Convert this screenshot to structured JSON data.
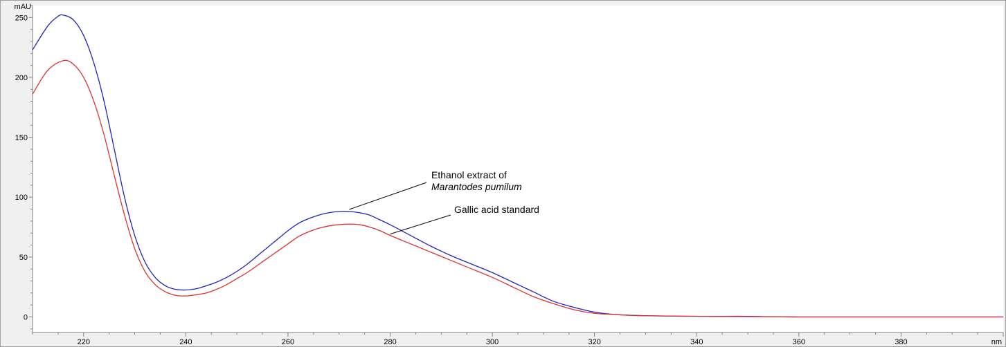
{
  "chart_data": {
    "type": "line",
    "title": "",
    "xlabel": "nm",
    "ylabel": "mAU",
    "xlim": [
      210,
      400
    ],
    "ylim": [
      -13,
      260
    ],
    "x_ticks": [
      220,
      240,
      260,
      280,
      300,
      320,
      340,
      360,
      380
    ],
    "y_ticks": [
      0,
      50,
      100,
      150,
      200,
      250
    ],
    "grid": false,
    "series": [
      {
        "name": "Ethanol extract of Marantodes pumilum",
        "color": "#2020c0",
        "x": [
          210,
          213,
          215,
          216,
          218,
          220,
          222,
          224,
          226,
          228,
          230,
          232,
          234,
          236,
          238,
          240,
          242,
          244,
          246,
          248,
          250,
          252,
          254,
          256,
          258,
          260,
          262,
          264,
          266,
          268,
          270,
          272,
          274,
          276,
          278,
          280,
          284,
          288,
          292,
          296,
          300,
          304,
          308,
          312,
          316,
          320,
          324,
          330,
          340,
          350,
          360,
          400
        ],
        "y": [
          223,
          243,
          251,
          252,
          248,
          235,
          212,
          180,
          140,
          100,
          68,
          46,
          33,
          26,
          23,
          22.5,
          23.5,
          26,
          29,
          33,
          38,
          44,
          51,
          58,
          65,
          72,
          78,
          82,
          85,
          87,
          88,
          88,
          87,
          85,
          81,
          77,
          68,
          59,
          51,
          44,
          37,
          29,
          21,
          13,
          8,
          4,
          2,
          1,
          0.5,
          0.5,
          0,
          0
        ]
      },
      {
        "name": "Gallic acid standard",
        "color": "#e03030",
        "x": [
          210,
          213,
          216,
          218,
          220,
          222,
          224,
          226,
          228,
          230,
          232,
          234,
          236,
          238,
          240,
          242,
          244,
          246,
          248,
          250,
          252,
          254,
          256,
          258,
          260,
          262,
          264,
          266,
          268,
          270,
          272,
          274,
          276,
          278,
          280,
          284,
          288,
          292,
          296,
          300,
          304,
          308,
          312,
          316,
          320,
          324,
          330,
          340,
          360,
          400
        ],
        "y": [
          186,
          206,
          214,
          211,
          200,
          180,
          152,
          118,
          85,
          57,
          38,
          27,
          21,
          18,
          17.5,
          18.5,
          20,
          23,
          27,
          32,
          37,
          43,
          49,
          55,
          61,
          67,
          71,
          74,
          76,
          77,
          77.5,
          77,
          75,
          72,
          68,
          61,
          54,
          47,
          40,
          33,
          25,
          17,
          11,
          6,
          3,
          2,
          1,
          0.5,
          0,
          0
        ]
      }
    ],
    "annotations": [
      {
        "lines": [
          "Ethanol extract of",
          "Marantodes pumilum"
        ],
        "italic_line": 1,
        "points_to": [
          272,
          88
        ]
      },
      {
        "lines": [
          "Gallic acid standard"
        ],
        "points_to": [
          280,
          68
        ]
      }
    ]
  }
}
